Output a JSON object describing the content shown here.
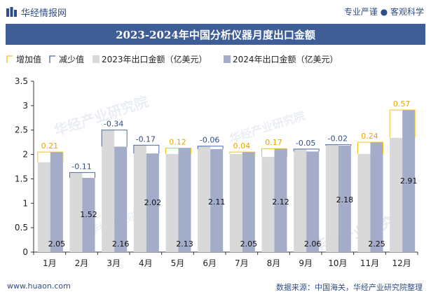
{
  "header": {
    "brand": "华经情报网",
    "tagline": "专业严谨 ● 客观科学"
  },
  "title": "2023-2024年中国分析仪器月度出口金额",
  "footer": {
    "website": "www.huaon.com",
    "source": "数据来源：中国海关，华经产业研究院整理"
  },
  "watermark": "华经产业研究院",
  "chart_data": {
    "type": "bar",
    "categories": [
      "1月",
      "2月",
      "3月",
      "4月",
      "5月",
      "6月",
      "7月",
      "8月",
      "9月",
      "10月",
      "11月",
      "12月"
    ],
    "series": [
      {
        "name": "2023年出口金额（亿美元）",
        "values": [
          1.84,
          1.63,
          2.5,
          2.19,
          2.01,
          2.17,
          2.01,
          1.95,
          2.11,
          2.2,
          2.01,
          2.34
        ],
        "color": "#d9d9d9"
      },
      {
        "name": "2024年出口金额（亿美元）",
        "values": [
          2.05,
          1.52,
          2.16,
          2.02,
          2.13,
          2.11,
          2.05,
          2.12,
          2.06,
          2.18,
          2.25,
          2.91
        ],
        "color": "#a3acc8"
      }
    ],
    "value_labels": [
      "2.05",
      "1.52",
      "2.16",
      "2.02",
      "2.13",
      "2.11",
      "2.05",
      "2.12",
      "2.06",
      "2.18",
      "2.25",
      "2.91"
    ],
    "changes": [
      0.21,
      -0.11,
      -0.34,
      -0.17,
      0.12,
      -0.06,
      0.04,
      0.17,
      -0.05,
      -0.02,
      0.24,
      0.57
    ],
    "change_labels": [
      "0.21",
      "-0.11",
      "-0.34",
      "-0.17",
      "0.12",
      "-0.06",
      "0.04",
      "0.17",
      "-0.05",
      "-0.02",
      "0.24",
      "0.57"
    ],
    "legend": [
      {
        "name": "增加值",
        "color": "#f0c419"
      },
      {
        "name": "减少值",
        "color": "#4a6aa5"
      },
      {
        "name": "2023年出口金额（亿美元）",
        "color": "#d9d9d9"
      },
      {
        "name": "2024年出口金额（亿美元）",
        "color": "#a3acc8"
      }
    ],
    "legend_position": "top-left",
    "ylim": [
      0,
      3.5
    ],
    "yticks": [
      "0",
      "0.5",
      "1",
      "1.5",
      "2",
      "2.5",
      "3",
      "3.5"
    ],
    "grid": false
  }
}
